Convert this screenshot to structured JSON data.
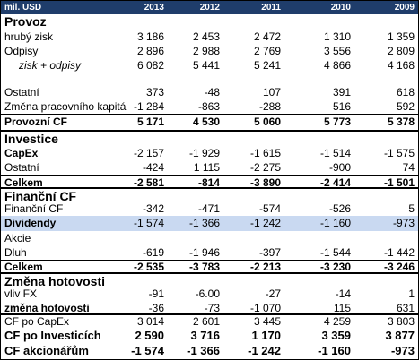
{
  "header": {
    "unit": "mil. USD",
    "years": [
      "2013",
      "2012",
      "2011",
      "2010",
      "2009"
    ]
  },
  "sections": {
    "provoz": "Provoz",
    "investice": "Investice",
    "financni": "Finanční CF",
    "zmena": "Změna hotovosti"
  },
  "rows": {
    "hruby_zisk": {
      "label": "hrubý zisk",
      "v": [
        "3 186",
        "2 453",
        "2 472",
        "1 310",
        "1 359"
      ]
    },
    "odpisy": {
      "label": "Odpisy",
      "v": [
        "2 896",
        "2 988",
        "2 769",
        "3 556",
        "2 809"
      ]
    },
    "zisk_odpisy": {
      "label": "zisk + odpisy",
      "v": [
        "6 082",
        "5 441",
        "5 241",
        "4 866",
        "4 168"
      ]
    },
    "ostatni1": {
      "label": "Ostatní",
      "v": [
        "373",
        "-48",
        "107",
        "391",
        "618"
      ]
    },
    "zmena_prac": {
      "label": "Změna pracovního kapitá",
      "v": [
        "-1 284",
        "-863",
        "-288",
        "516",
        "592"
      ]
    },
    "provozni_cf": {
      "label": "Provozní CF",
      "v": [
        "5 171",
        "4 530",
        "5 060",
        "5 773",
        "5 378"
      ]
    },
    "capex": {
      "label": "CapEx",
      "v": [
        "-2 157",
        "-1 929",
        "-1 615",
        "-1 514",
        "-1 575"
      ]
    },
    "ostatni2": {
      "label": "Ostatní",
      "v": [
        "-424",
        "1 115",
        "-2 275",
        "-900",
        "74"
      ]
    },
    "celkem1": {
      "label": "Celkem",
      "v": [
        "-2 581",
        "-814",
        "-3 890",
        "-2 414",
        "-1 501"
      ]
    },
    "financni_cf": {
      "label": "Finanční CF",
      "v": [
        "-342",
        "-471",
        "-574",
        "-526",
        "5"
      ]
    },
    "dividendy": {
      "label": "Dividendy",
      "v": [
        "-1 574",
        "-1 366",
        "-1 242",
        "-1 160",
        "-973"
      ]
    },
    "akcie": {
      "label": "Akcie"
    },
    "dluh": {
      "label": "Dluh",
      "v": [
        "-619",
        "-1 946",
        "-397",
        "-1 544",
        "-1 442"
      ]
    },
    "celkem2": {
      "label": "Celkem",
      "v": [
        "-2 535",
        "-3 783",
        "-2 213",
        "-3 230",
        "-3 246"
      ]
    },
    "vliv_fx": {
      "label": "vliv FX",
      "v": [
        "-91",
        "-6.00",
        "-27",
        "-14",
        "1"
      ]
    },
    "zmena_hot": {
      "label": "změna hotovosti",
      "v": [
        "-36",
        "-73",
        "-1 070",
        "115",
        "631"
      ]
    },
    "cf_capex": {
      "label": "CF po CapEx",
      "v": [
        "3 014",
        "2 601",
        "3 445",
        "4 259",
        "3 803"
      ]
    },
    "cf_invest": {
      "label": "CF po Investicích",
      "v": [
        "2 590",
        "3 716",
        "1 170",
        "3 359",
        "3 877"
      ]
    },
    "cf_akcion": {
      "label": "CF akcionářům",
      "v": [
        "-1 574",
        "-1 366",
        "-1 242",
        "-1 160",
        "-973"
      ]
    }
  }
}
